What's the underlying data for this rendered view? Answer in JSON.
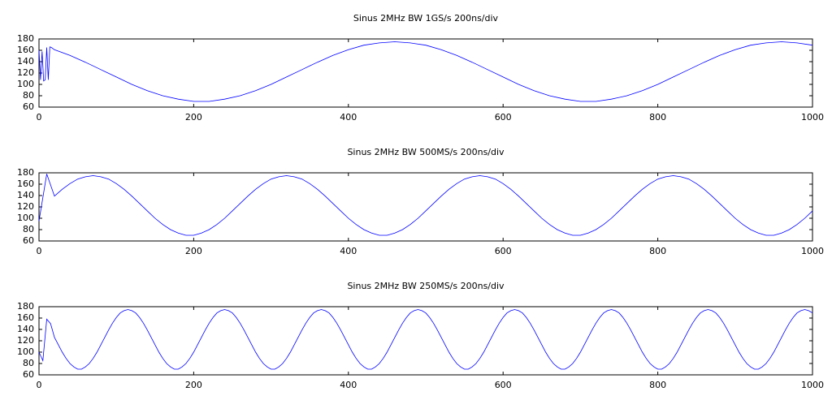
{
  "chart_data": [
    {
      "type": "line",
      "title": "Sinus 2MHz BW 1GS/s 200ns/div",
      "color": "#0000ff",
      "xlim": [
        0,
        1000
      ],
      "ylim": [
        60,
        180
      ],
      "xticks": [
        0,
        200,
        400,
        600,
        800,
        1000
      ],
      "yticks": [
        60,
        80,
        100,
        120,
        140,
        160,
        180
      ],
      "x": [
        0,
        2,
        4,
        6,
        8,
        10,
        12,
        14,
        16,
        20,
        40,
        60,
        80,
        100,
        120,
        140,
        160,
        180,
        200,
        220,
        240,
        260,
        280,
        300,
        320,
        340,
        360,
        380,
        400,
        420,
        440,
        460,
        480,
        500,
        520,
        540,
        560,
        580,
        600,
        620,
        640,
        660,
        680,
        700,
        720,
        740,
        760,
        780,
        800,
        820,
        840,
        860,
        880,
        900,
        920,
        940,
        960,
        980,
        1000
      ],
      "values": [
        160,
        108,
        158,
        106,
        108,
        165,
        108,
        166,
        165,
        161,
        151,
        139,
        126,
        113,
        100,
        89,
        80,
        74,
        70,
        70,
        74,
        80,
        89,
        100,
        113,
        126,
        139,
        151,
        161,
        169,
        173,
        175,
        173,
        169,
        161,
        151,
        139,
        126,
        113,
        100,
        89,
        80,
        74,
        70,
        70,
        74,
        80,
        89,
        100,
        113,
        126,
        139,
        151,
        161,
        169,
        173,
        175,
        173,
        169
      ]
    },
    {
      "type": "line",
      "title": "Sinus 2MHz BW 500MS/s 200ns/div",
      "color": "#0000ff",
      "xlim": [
        0,
        1000
      ],
      "ylim": [
        60,
        180
      ],
      "xticks": [
        0,
        200,
        400,
        600,
        800,
        1000
      ],
      "yticks": [
        60,
        80,
        100,
        120,
        140,
        160,
        180
      ],
      "x": [
        0,
        10,
        20,
        30,
        40,
        50,
        60,
        70,
        80,
        90,
        100,
        110,
        120,
        130,
        140,
        150,
        160,
        170,
        180,
        190,
        200,
        210,
        220,
        230,
        240,
        250,
        260,
        270,
        280,
        290,
        300,
        310,
        320,
        330,
        340,
        350,
        360,
        370,
        380,
        390,
        400,
        410,
        420,
        430,
        440,
        450,
        460,
        470,
        480,
        490,
        500,
        510,
        520,
        530,
        540,
        550,
        560,
        570,
        580,
        590,
        600,
        610,
        620,
        630,
        640,
        650,
        660,
        670,
        680,
        690,
        700,
        710,
        720,
        730,
        740,
        750,
        760,
        770,
        780,
        790,
        800,
        810,
        820,
        830,
        840,
        850,
        860,
        870,
        880,
        890,
        900,
        910,
        920,
        930,
        940,
        950,
        960,
        970,
        980,
        990,
        1000
      ],
      "values": [
        95,
        178,
        139,
        151,
        161,
        169,
        173,
        175,
        173,
        169,
        161,
        151,
        139,
        126,
        113,
        100,
        89,
        80,
        74,
        70,
        70,
        74,
        80,
        89,
        100,
        113,
        126,
        139,
        151,
        161,
        169,
        173,
        175,
        173,
        169,
        161,
        151,
        139,
        126,
        113,
        100,
        89,
        80,
        74,
        70,
        70,
        74,
        80,
        89,
        100,
        113,
        126,
        139,
        151,
        161,
        169,
        173,
        175,
        173,
        169,
        161,
        151,
        139,
        126,
        113,
        100,
        89,
        80,
        74,
        70,
        70,
        74,
        80,
        89,
        100,
        113,
        126,
        139,
        151,
        161,
        169,
        173,
        175,
        173,
        169,
        161,
        151,
        139,
        126,
        113,
        100,
        89,
        80,
        74,
        70,
        70,
        74,
        80,
        89,
        100,
        113
      ]
    },
    {
      "type": "line",
      "title": "Sinus 2MHz BW 250MS/s 200ns/div",
      "color": "#0000ff",
      "xlim": [
        0,
        1000
      ],
      "ylim": [
        60,
        180
      ],
      "xticks": [
        0,
        200,
        400,
        600,
        800,
        1000
      ],
      "yticks": [
        60,
        80,
        100,
        120,
        140,
        160,
        180
      ],
      "x": [
        0,
        5,
        10,
        15,
        20,
        25,
        30,
        35,
        40,
        45,
        50,
        55,
        60,
        65,
        70,
        75,
        80,
        85,
        90,
        95,
        100,
        105,
        110,
        115,
        120,
        125,
        130,
        135,
        140,
        145,
        150,
        155,
        160,
        165,
        170,
        175,
        180,
        185,
        190,
        195,
        200,
        205,
        210,
        215,
        220,
        225,
        230,
        235,
        240,
        245,
        250,
        255,
        260,
        265,
        270,
        275,
        280,
        285,
        290,
        295,
        300,
        305,
        310,
        315,
        320,
        325,
        330,
        335,
        340,
        345,
        350,
        355,
        360,
        365,
        370,
        375,
        380,
        385,
        390,
        395,
        400,
        405,
        410,
        415,
        420,
        425,
        430,
        435,
        440,
        445,
        450,
        455,
        460,
        465,
        470,
        475,
        480,
        485,
        490,
        495,
        500,
        505,
        510,
        515,
        520,
        525,
        530,
        535,
        540,
        545,
        550,
        555,
        560,
        565,
        570,
        575,
        580,
        585,
        590,
        595,
        600,
        605,
        610,
        615,
        620,
        625,
        630,
        635,
        640,
        645,
        650,
        655,
        660,
        665,
        670,
        675,
        680,
        685,
        690,
        695,
        700,
        705,
        710,
        715,
        720,
        725,
        730,
        735,
        740,
        745,
        750,
        755,
        760,
        765,
        770,
        775,
        780,
        785,
        790,
        795,
        800,
        805,
        810,
        815,
        820,
        825,
        830,
        835,
        840,
        845,
        850,
        855,
        860,
        865,
        870,
        875,
        880,
        885,
        890,
        895,
        900,
        905,
        910,
        915,
        920,
        925,
        930,
        935,
        940,
        945,
        950,
        955,
        960,
        965,
        970,
        975,
        980,
        985,
        990,
        995,
        1000
      ],
      "values": [
        100,
        85,
        158,
        150,
        126,
        113,
        100,
        89,
        80,
        74,
        70,
        70,
        74,
        80,
        89,
        100,
        113,
        126,
        139,
        151,
        161,
        169,
        173,
        175,
        173,
        169,
        161,
        151,
        139,
        126,
        113,
        100,
        89,
        80,
        74,
        70,
        70,
        74,
        80,
        89,
        100,
        113,
        126,
        139,
        151,
        161,
        169,
        173,
        175,
        173,
        169,
        161,
        151,
        139,
        126,
        113,
        100,
        89,
        80,
        74,
        70,
        70,
        74,
        80,
        89,
        100,
        113,
        126,
        139,
        151,
        161,
        169,
        173,
        175,
        173,
        169,
        161,
        151,
        139,
        126,
        113,
        100,
        89,
        80,
        74,
        70,
        70,
        74,
        80,
        89,
        100,
        113,
        126,
        139,
        151,
        161,
        169,
        173,
        175,
        173,
        169,
        161,
        151,
        139,
        126,
        113,
        100,
        89,
        80,
        74,
        70,
        70,
        74,
        80,
        89,
        100,
        113,
        126,
        139,
        151,
        161,
        169,
        173,
        175,
        173,
        169,
        161,
        151,
        139,
        126,
        113,
        100,
        89,
        80,
        74,
        70,
        70,
        74,
        80,
        89,
        100,
        113,
        126,
        139,
        151,
        161,
        169,
        173,
        175,
        173,
        169,
        161,
        151,
        139,
        126,
        113,
        100,
        89,
        80,
        74,
        70,
        70,
        74,
        80,
        89,
        100,
        113,
        126,
        139,
        151,
        161,
        169,
        173,
        175,
        173,
        169,
        161,
        151,
        139,
        126,
        113,
        100,
        89,
        80,
        74,
        70,
        70,
        74,
        80,
        89,
        100,
        113,
        126,
        139,
        151,
        161,
        169,
        173,
        175,
        173,
        169
      ]
    }
  ]
}
